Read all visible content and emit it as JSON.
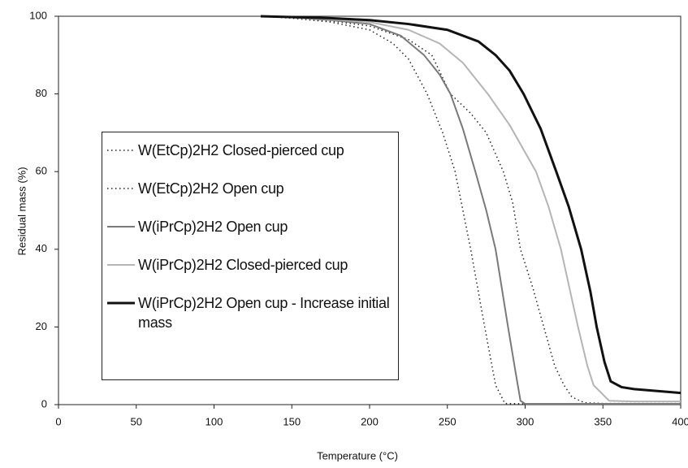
{
  "chart_data": {
    "type": "line",
    "x_label": "Temperature (°C)",
    "y_label": "Residual mass (%)",
    "xlim": [
      0,
      400
    ],
    "ylim": [
      0,
      100
    ],
    "xticks": [
      0,
      50,
      100,
      150,
      200,
      250,
      300,
      350,
      400
    ],
    "yticks": [
      0,
      20,
      40,
      60,
      80,
      100
    ],
    "grid": false,
    "series": [
      {
        "name": "W(EtCp)2H2 Closed-pierced cup",
        "color": "#222222",
        "style": "dotted",
        "width": 1.5,
        "x": [
          130,
          150,
          175,
          200,
          225,
          240,
          252,
          265,
          275,
          286,
          292,
          297,
          305,
          312,
          319,
          325,
          330,
          338,
          350,
          400
        ],
        "values": [
          100,
          99.6,
          98.8,
          97.5,
          94,
          90,
          80,
          75,
          70,
          60,
          52,
          40,
          30,
          20,
          10,
          5,
          2,
          0.5,
          0.3,
          0.3
        ]
      },
      {
        "name": "W(EtCp)2H2 Open cup",
        "color": "#222222",
        "style": "dotted",
        "width": 1.5,
        "x": [
          130,
          150,
          175,
          200,
          215,
          225,
          237,
          247,
          255,
          265,
          274,
          281,
          287,
          300,
          400
        ],
        "values": [
          100,
          99.5,
          98.5,
          96.5,
          93,
          89,
          80,
          70,
          60,
          40,
          20,
          5,
          0.3,
          0.2,
          0.2
        ]
      },
      {
        "name": "W(iPrCp)2H2 Open cup",
        "color": "#7a7a7a",
        "style": "solid",
        "width": 2,
        "x": [
          130,
          150,
          175,
          200,
          220,
          235,
          245,
          252,
          260,
          268,
          275,
          281,
          289,
          294,
          297,
          300,
          400
        ],
        "values": [
          100,
          99.7,
          99,
          98,
          95,
          90,
          85,
          80,
          71,
          60,
          50,
          40,
          20,
          8,
          1,
          0.2,
          0.2
        ]
      },
      {
        "name": "W(iPrCp)2H2 Closed-pierced cup",
        "color": "#b5b5b5",
        "style": "solid",
        "width": 2,
        "x": [
          130,
          150,
          175,
          200,
          225,
          245,
          260,
          276,
          290,
          307,
          315,
          323,
          334,
          340,
          344,
          354,
          370,
          400
        ],
        "values": [
          100,
          99.7,
          99.2,
          98.5,
          96.5,
          93,
          88,
          80,
          72,
          60,
          51,
          40,
          20,
          10,
          5,
          1,
          0.8,
          0.8
        ]
      },
      {
        "name": "W(iPrCp)2H2 Open cup - Increase initial mass",
        "color": "#111111",
        "style": "solid",
        "width": 3,
        "x": [
          130,
          150,
          175,
          200,
          225,
          250,
          270,
          281,
          290,
          299,
          310,
          320,
          328,
          336,
          342,
          346,
          351,
          355,
          362,
          370,
          385,
          400
        ],
        "values": [
          100,
          99.8,
          99.5,
          99,
          98,
          96.5,
          93.5,
          90,
          86,
          80,
          71,
          60,
          51,
          40,
          29,
          20,
          11,
          6,
          4.5,
          4,
          3.5,
          3
        ]
      }
    ]
  }
}
